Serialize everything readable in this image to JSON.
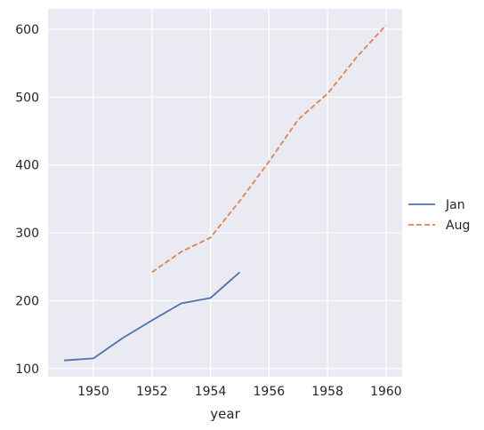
{
  "chart_data": {
    "type": "line",
    "xlabel": "year",
    "ylabel": "",
    "xlim": [
      1948.45,
      1960.55
    ],
    "ylim": [
      88,
      630
    ],
    "x_ticks": [
      1950,
      1952,
      1954,
      1956,
      1958,
      1960
    ],
    "y_ticks": [
      100,
      200,
      300,
      400,
      500,
      600
    ],
    "grid": true,
    "legend_placement": "outside-right",
    "background_color": "#eaeaf2",
    "series": [
      {
        "name": "Jan",
        "color": "#4c72b0",
        "dash": "solid",
        "x": [
          1949,
          1950,
          1951,
          1952,
          1953,
          1954,
          1955
        ],
        "y": [
          112,
          115,
          145,
          171,
          196,
          204,
          242
        ]
      },
      {
        "name": "Aug",
        "color": "#dd8452",
        "dash": "dashed",
        "x": [
          1952,
          1953,
          1954,
          1955,
          1956,
          1957,
          1958,
          1959,
          1960
        ],
        "y": [
          242,
          272,
          293,
          347,
          405,
          467,
          505,
          559,
          606
        ]
      }
    ]
  }
}
